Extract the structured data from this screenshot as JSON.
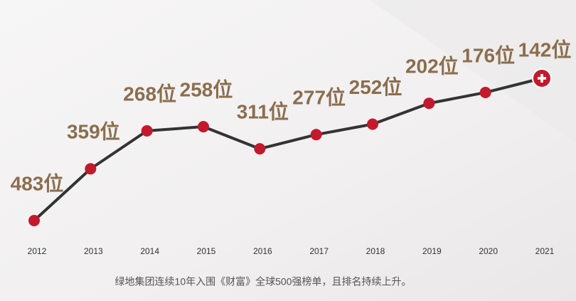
{
  "chart_data": {
    "type": "line",
    "categories": [
      "2012",
      "2013",
      "2014",
      "2015",
      "2016",
      "2017",
      "2018",
      "2019",
      "2020",
      "2021"
    ],
    "values": [
      483,
      359,
      268,
      258,
      311,
      277,
      252,
      202,
      176,
      142
    ],
    "value_labels": [
      "483位",
      "359位",
      "268位",
      "258位",
      "311位",
      "277位",
      "252位",
      "202位",
      "176位",
      "142位"
    ],
    "y_reversed": true,
    "color": "#c21a2c",
    "line_color": "#333333",
    "label_color": "#8a6e4e",
    "caption": "绿地集团连续10年入围《财富》全球500强榜单，且排名持续上升。"
  }
}
